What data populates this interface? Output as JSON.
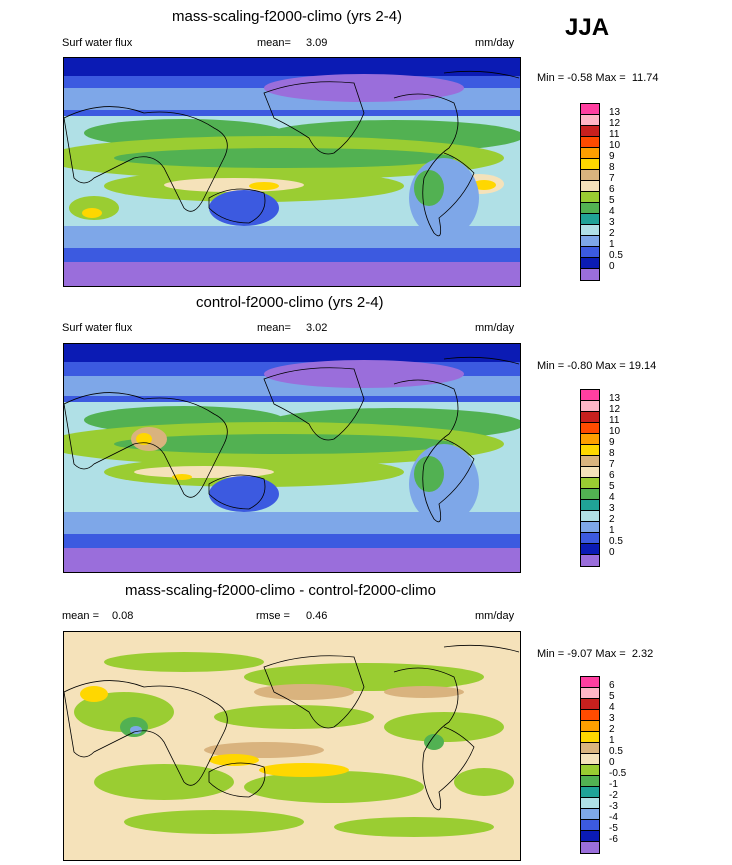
{
  "season": "JJA",
  "panels": [
    {
      "title": "mass-scaling-f2000-climo (yrs 2-4)",
      "left_label": "Surf water flux",
      "mean_label": "mean=",
      "mean_value": "3.09",
      "units": "mm/day",
      "min_label": "Min =",
      "min_value": "-0.58",
      "max_label": "Max =",
      "max_value": "11.74",
      "levels": [
        "13",
        "12",
        "11",
        "10",
        "9",
        "8",
        "7",
        "6",
        "5",
        "4",
        "3",
        "2",
        "1",
        "0.5",
        "0"
      ],
      "colors": [
        "#ff3fa0",
        "#ffb5c5",
        "#c8201e",
        "#ff4b00",
        "#ffa000",
        "#ffd700",
        "#d9b37e",
        "#f5e2ba",
        "#9acd32",
        "#52b152",
        "#20a397",
        "#b0e0e6",
        "#7ea7e8",
        "#3c5ae0",
        "#0b1bb4",
        "#9a6edb"
      ]
    },
    {
      "title": "control-f2000-climo (yrs 2-4)",
      "left_label": "Surf water flux",
      "mean_label": "mean=",
      "mean_value": "3.02",
      "units": "mm/day",
      "min_label": "Min =",
      "min_value": "-0.80",
      "max_label": "Max =",
      "max_value": "19.14",
      "levels": [
        "13",
        "12",
        "11",
        "10",
        "9",
        "8",
        "7",
        "6",
        "5",
        "4",
        "3",
        "2",
        "1",
        "0.5",
        "0"
      ],
      "colors": [
        "#ff3fa0",
        "#ffb5c5",
        "#c8201e",
        "#ff4b00",
        "#ffa000",
        "#ffd700",
        "#d9b37e",
        "#f5e2ba",
        "#9acd32",
        "#52b152",
        "#20a397",
        "#b0e0e6",
        "#7ea7e8",
        "#3c5ae0",
        "#0b1bb4",
        "#9a6edb"
      ]
    },
    {
      "title": "mass-scaling-f2000-climo - control-f2000-climo",
      "left_label": "",
      "mean_label": "mean =",
      "mean_value": "0.08",
      "rmse_label": "rmse =",
      "rmse_value": "0.46",
      "units": "mm/day",
      "min_label": "Min =",
      "min_value": "-9.07",
      "max_label": "Max =",
      "max_value": "2.32",
      "levels": [
        "6",
        "5",
        "4",
        "3",
        "2",
        "1",
        "0.5",
        "0",
        "-0.5",
        "-1",
        "-2",
        "-3",
        "-4",
        "-5",
        "-6"
      ],
      "colors": [
        "#ff3fa0",
        "#ffb5c5",
        "#c8201e",
        "#ff4b00",
        "#ffa000",
        "#ffd700",
        "#d9b37e",
        "#f5e2ba",
        "#9acd32",
        "#52b152",
        "#20a397",
        "#b0e0e6",
        "#7ea7e8",
        "#3c5ae0",
        "#0b1bb4",
        "#9a6edb"
      ]
    }
  ]
}
